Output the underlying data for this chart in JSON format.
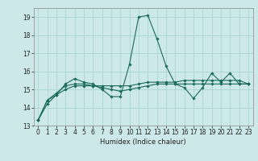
{
  "title": "",
  "xlabel": "Humidex (Indice chaleur)",
  "background_color": "#cce8e8",
  "grid_color": "#aad4d4",
  "line_color": "#1a6b5a",
  "xlim": [
    -0.5,
    23.5
  ],
  "ylim": [
    13.0,
    19.5
  ],
  "yticks": [
    13,
    14,
    15,
    16,
    17,
    18,
    19
  ],
  "xticks": [
    0,
    1,
    2,
    3,
    4,
    5,
    6,
    7,
    8,
    9,
    10,
    11,
    12,
    13,
    14,
    15,
    16,
    17,
    18,
    19,
    20,
    21,
    22,
    23
  ],
  "line1_x": [
    0,
    1,
    2,
    3,
    4,
    5,
    6,
    7,
    8,
    9,
    10,
    11,
    12,
    13,
    14,
    15,
    16,
    17,
    18,
    19,
    20,
    21,
    22,
    23
  ],
  "line1_y": [
    13.3,
    14.4,
    14.7,
    15.3,
    15.6,
    15.4,
    15.3,
    15.0,
    14.6,
    14.6,
    16.4,
    19.0,
    19.1,
    17.8,
    16.3,
    15.3,
    15.1,
    14.5,
    15.1,
    15.9,
    15.4,
    15.9,
    15.3,
    15.3
  ],
  "line2_x": [
    0,
    1,
    2,
    3,
    4,
    5,
    6,
    7,
    8,
    9,
    10,
    11,
    12,
    13,
    14,
    15,
    16,
    17,
    18,
    19,
    20,
    21,
    22,
    23
  ],
  "line2_y": [
    13.3,
    14.4,
    14.8,
    15.2,
    15.3,
    15.3,
    15.2,
    15.1,
    15.0,
    14.9,
    15.0,
    15.1,
    15.2,
    15.3,
    15.3,
    15.3,
    15.3,
    15.3,
    15.3,
    15.3,
    15.3,
    15.3,
    15.3,
    15.3
  ],
  "line3_x": [
    0,
    1,
    2,
    3,
    4,
    5,
    6,
    7,
    8,
    9,
    10,
    11,
    12,
    13,
    14,
    15,
    16,
    17,
    18,
    19,
    20,
    21,
    22,
    23
  ],
  "line3_y": [
    13.3,
    14.2,
    14.7,
    15.0,
    15.2,
    15.2,
    15.2,
    15.2,
    15.2,
    15.2,
    15.2,
    15.3,
    15.4,
    15.4,
    15.4,
    15.4,
    15.5,
    15.5,
    15.5,
    15.5,
    15.5,
    15.5,
    15.5,
    15.3
  ],
  "tick_fontsize": 5.5,
  "xlabel_fontsize": 6.0,
  "marker_size": 1.8,
  "line_width": 0.8
}
